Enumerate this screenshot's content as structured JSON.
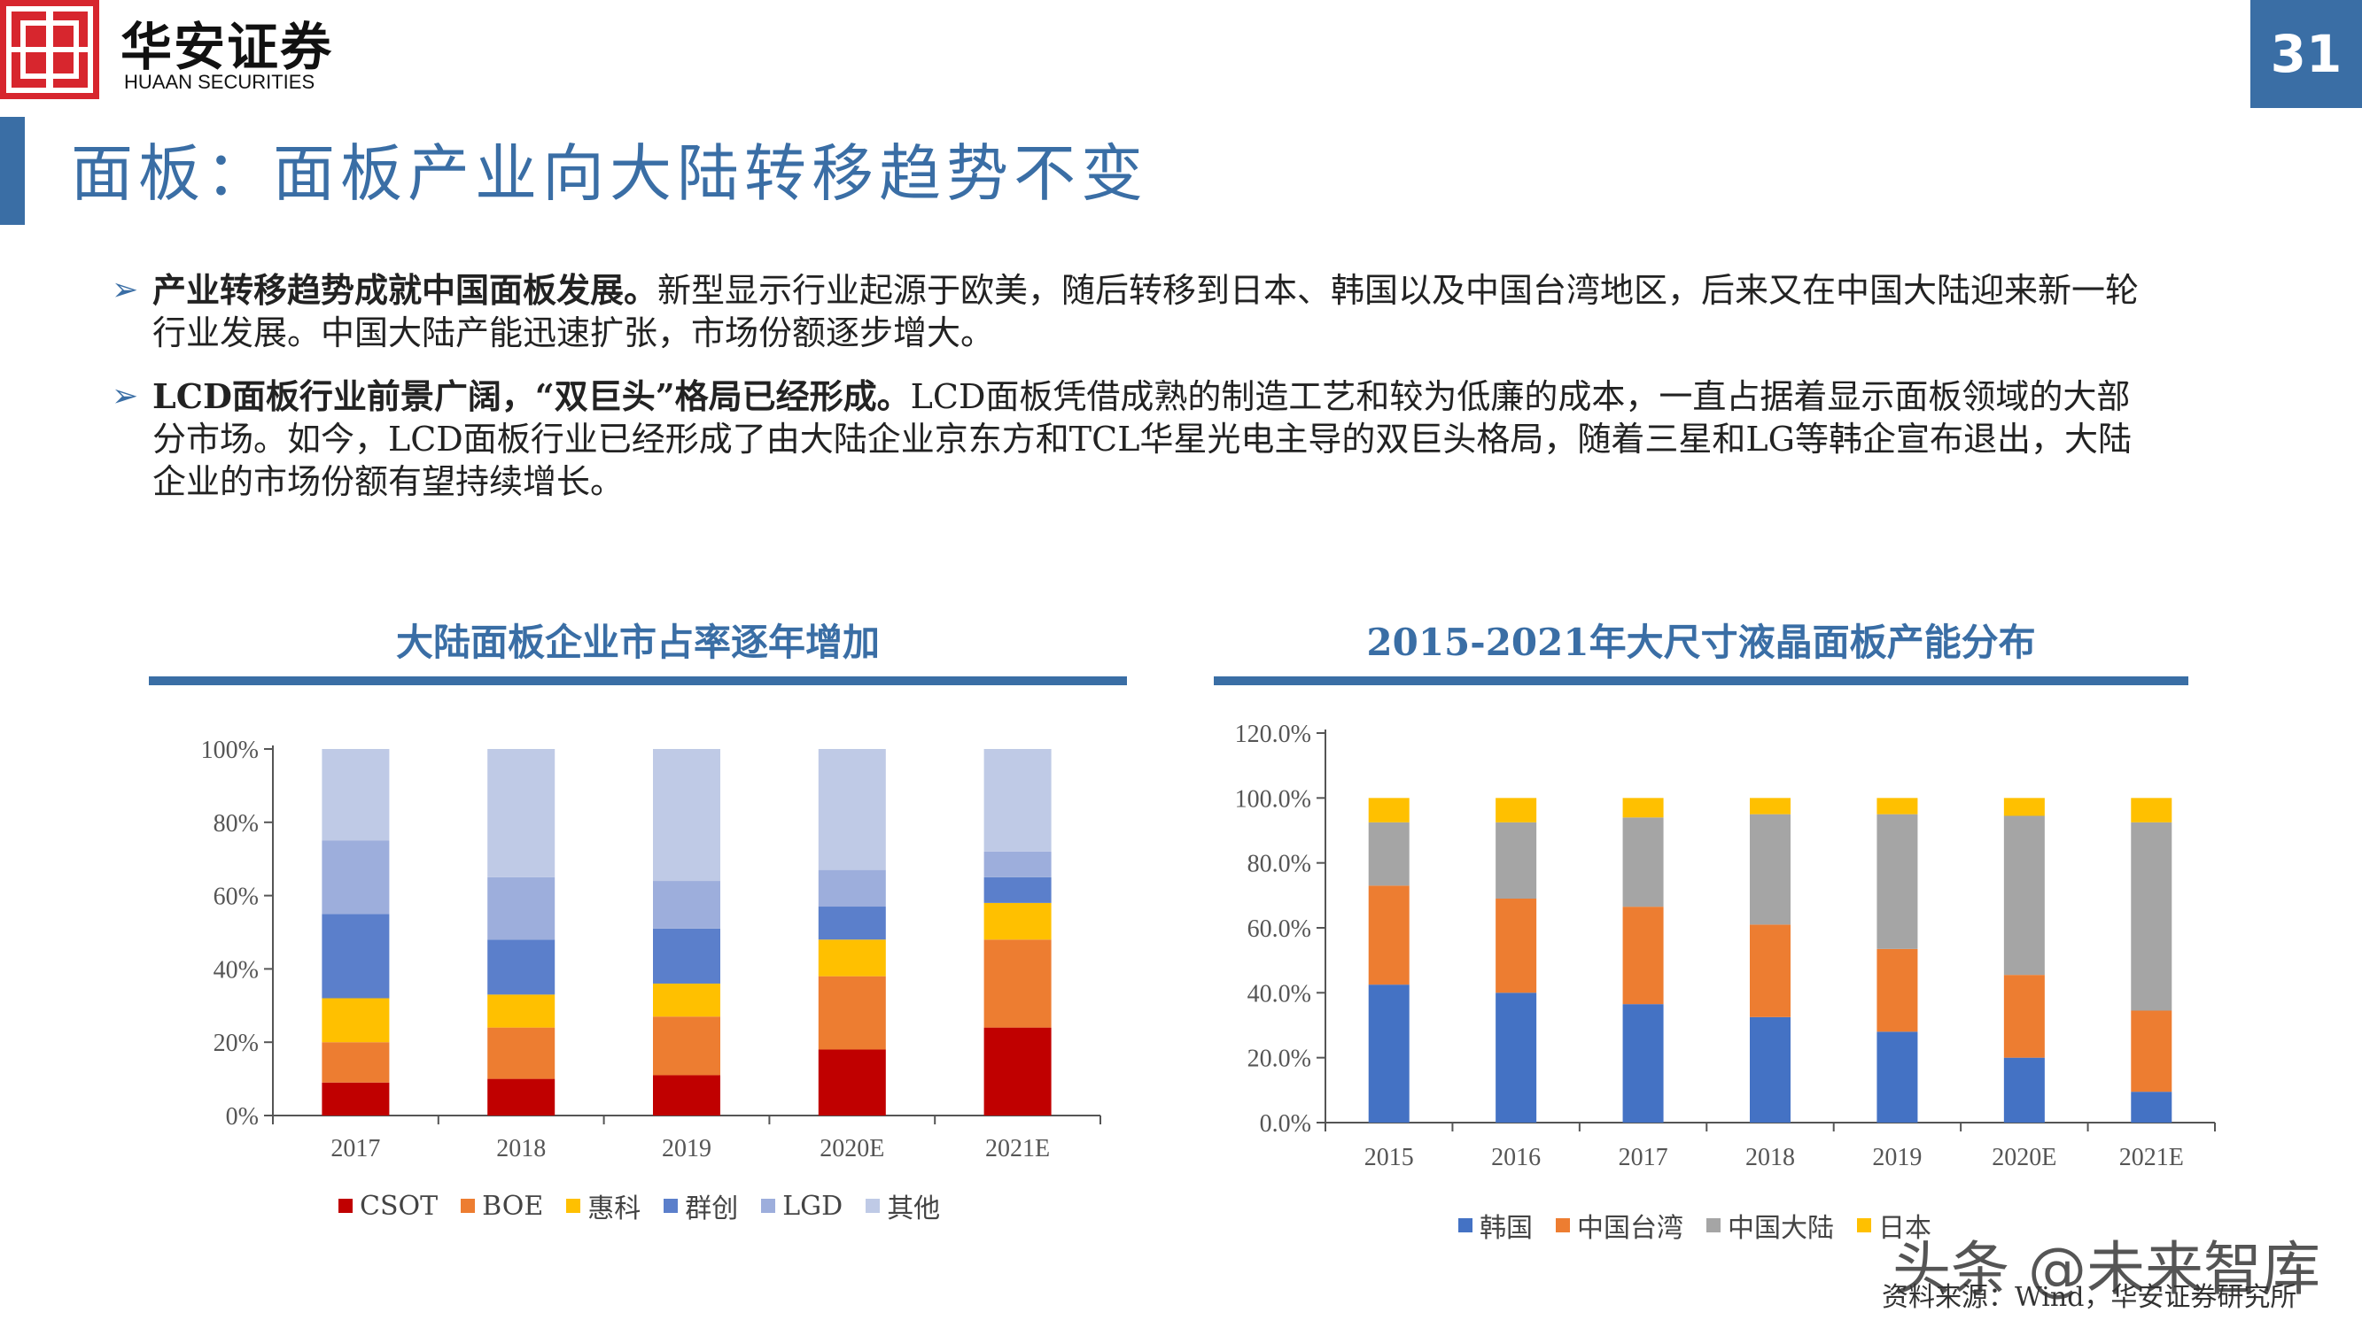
{
  "header": {
    "brand_cn": "华安证券",
    "brand_en": "HUAAN SECURITIES",
    "page_number": "31"
  },
  "title": "面板：面板产业向大陆转移趋势不变",
  "bullets": [
    {
      "bold": "产业转移趋势成就中国面板发展。",
      "text": "新型显示行业起源于欧美，随后转移到日本、韩国以及中国台湾地区，后来又在中国大陆迎来新一轮行业发展。中国大陆产能迅速扩张，市场份额逐步增大。"
    },
    {
      "bold": "LCD面板行业前景广阔，“双巨头”格局已经形成。",
      "text": "LCD面板凭借成熟的制造工艺和较为低廉的成本，一直占据着显示面板领域的大部分市场。如今，LCD面板行业已经形成了由大陆企业京东方和TCL华星光电主导的双巨头格局，随着三星和LG等韩企宣布退出，大陆企业的市场份额有望持续增长。"
    }
  ],
  "chart_data": [
    {
      "type": "bar",
      "stacked": true,
      "title": "大陆面板企业市占率逐年增加",
      "categories": [
        "2017",
        "2018",
        "2019",
        "2020E",
        "2021E"
      ],
      "series": [
        {
          "name": "CSOT",
          "color": "#c00000",
          "values": [
            9,
            10,
            11,
            18,
            24
          ]
        },
        {
          "name": "BOE",
          "color": "#ed7d31",
          "values": [
            11,
            14,
            16,
            20,
            24
          ]
        },
        {
          "name": "惠科",
          "color": "#ffc000",
          "values": [
            12,
            9,
            9,
            10,
            10
          ]
        },
        {
          "name": "群创",
          "color": "#5b7fcb",
          "values": [
            23,
            15,
            15,
            9,
            7
          ]
        },
        {
          "name": "LGD",
          "color": "#9daedc",
          "values": [
            20,
            17,
            13,
            10,
            7
          ]
        },
        {
          "name": "其他",
          "color": "#bfcae6",
          "values": [
            25,
            35,
            36,
            33,
            28
          ]
        }
      ],
      "yticks": [
        "0%",
        "20%",
        "40%",
        "60%",
        "80%",
        "100%"
      ],
      "ylim": [
        0,
        100
      ],
      "legend_position": "bottom"
    },
    {
      "type": "bar",
      "stacked": true,
      "title": "2015-2021年大尺寸液晶面板产能分布",
      "categories": [
        "2015",
        "2016",
        "2017",
        "2018",
        "2019",
        "2020E",
        "2021E"
      ],
      "series": [
        {
          "name": "韩国",
          "color": "#4472c4",
          "values": [
            42.5,
            40,
            36.5,
            32.5,
            28,
            20,
            9.5
          ]
        },
        {
          "name": "中国台湾",
          "color": "#ed7d31",
          "values": [
            30.5,
            29,
            30,
            28.5,
            25.5,
            25.5,
            25
          ]
        },
        {
          "name": "中国大陆",
          "color": "#a5a5a5",
          "values": [
            19.5,
            23.5,
            27.5,
            34,
            41.5,
            49,
            58
          ]
        },
        {
          "name": "日本",
          "color": "#ffc000",
          "values": [
            7.5,
            7.5,
            6,
            5,
            5,
            5.5,
            7.5
          ]
        }
      ],
      "yticks": [
        "0.0%",
        "20.0%",
        "40.0%",
        "60.0%",
        "80.0%",
        "100.0%",
        "120.0%"
      ],
      "ylim": [
        0,
        120
      ],
      "legend_position": "bottom"
    }
  ],
  "source": "资料来源：Wind，华安证券研究所",
  "watermark": "头条 @未来智库"
}
